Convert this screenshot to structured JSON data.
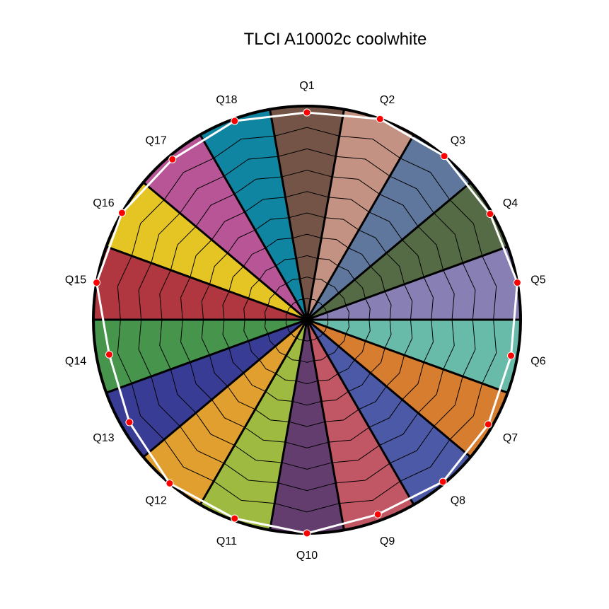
{
  "chart_data": {
    "type": "radar",
    "title": "TLCI A10002c coolwhite",
    "categories": [
      "Q1",
      "Q2",
      "Q3",
      "Q4",
      "Q5",
      "Q6",
      "Q7",
      "Q8",
      "Q9",
      "Q10",
      "Q11",
      "Q12",
      "Q13",
      "Q14",
      "Q15",
      "Q16",
      "Q17",
      "Q18"
    ],
    "values": [
      97,
      100,
      100,
      99,
      100,
      97,
      98,
      99,
      97,
      100,
      99,
      100,
      96,
      94,
      100,
      100,
      98,
      99
    ],
    "rlim": [
      0,
      100
    ],
    "ring_step": 10,
    "grid": true,
    "sector_colors": [
      "#735446",
      "#c39282",
      "#5f779c",
      "#556b45",
      "#8880b4",
      "#67bba8",
      "#d67d30",
      "#4b59a6",
      "#c15664",
      "#633d6e",
      "#9fba41",
      "#e09f2f",
      "#393c94",
      "#47944c",
      "#b0373f",
      "#e5c524",
      "#b85597",
      "#0f85a2"
    ],
    "line_color": "#ffffff",
    "marker_color": "#ff0000"
  }
}
